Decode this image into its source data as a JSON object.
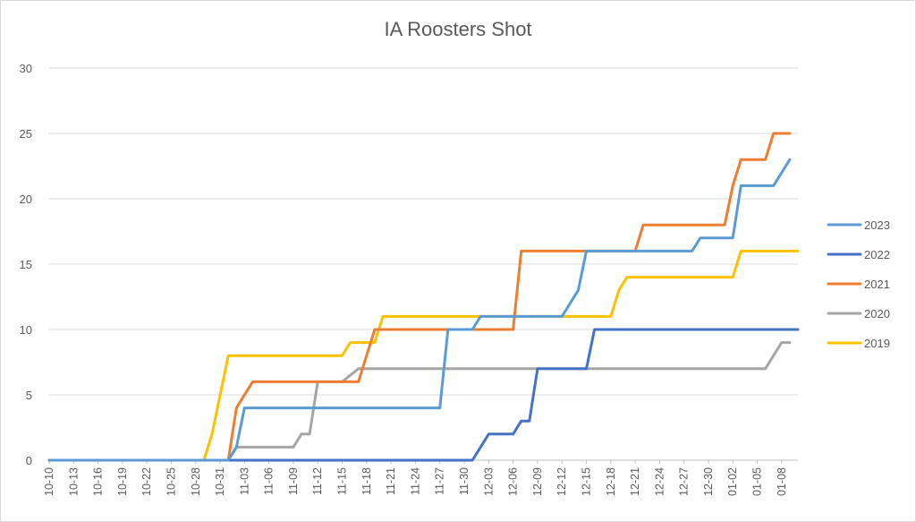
{
  "chart_data": {
    "type": "line",
    "title": "IA Roosters Shot",
    "xlabel": "",
    "ylabel": "",
    "ylim": [
      0,
      30
    ],
    "yticks": [
      0,
      5,
      10,
      15,
      20,
      25,
      30
    ],
    "grid": true,
    "legend_position": "right",
    "x_start": "10-10",
    "x_end": "01-10",
    "x_tick_labels": [
      "10-10",
      "10-13",
      "10-16",
      "10-19",
      "10-22",
      "10-25",
      "10-28",
      "10-31",
      "11-03",
      "11-06",
      "11-09",
      "11-12",
      "11-15",
      "11-18",
      "11-21",
      "11-24",
      "11-27",
      "11-30",
      "12-03",
      "12-06",
      "12-09",
      "12-12",
      "12-15",
      "12-18",
      "12-21",
      "12-24",
      "12-27",
      "12-30",
      "01-02",
      "01-05",
      "01-08"
    ],
    "series": [
      {
        "name": "2023",
        "color": "#5B9BD5",
        "points": [
          [
            "10-10",
            0
          ],
          [
            "11-01",
            0
          ],
          [
            "11-02",
            1
          ],
          [
            "11-03",
            4
          ],
          [
            "11-27",
            4
          ],
          [
            "11-28",
            10
          ],
          [
            "12-01",
            10
          ],
          [
            "12-02",
            11
          ],
          [
            "12-12",
            11
          ],
          [
            "12-14",
            13
          ],
          [
            "12-15",
            16
          ],
          [
            "12-28",
            16
          ],
          [
            "12-29",
            17
          ],
          [
            "01-02",
            17
          ],
          [
            "01-03",
            21
          ],
          [
            "01-07",
            21
          ],
          [
            "01-09",
            23
          ]
        ]
      },
      {
        "name": "2022",
        "color": "#4472C4",
        "points": [
          [
            "10-10",
            0
          ],
          [
            "12-01",
            0
          ],
          [
            "12-03",
            2
          ],
          [
            "12-06",
            2
          ],
          [
            "12-07",
            3
          ],
          [
            "12-08",
            3
          ],
          [
            "12-09",
            7
          ],
          [
            "12-15",
            7
          ],
          [
            "12-16",
            10
          ],
          [
            "01-10",
            10
          ]
        ]
      },
      {
        "name": "2021",
        "color": "#ED7D31",
        "points": [
          [
            "10-10",
            0
          ],
          [
            "11-01",
            0
          ],
          [
            "11-02",
            4
          ],
          [
            "11-04",
            6
          ],
          [
            "11-12",
            6
          ],
          [
            "11-17",
            6
          ],
          [
            "11-18",
            8
          ],
          [
            "11-19",
            10
          ],
          [
            "12-06",
            10
          ],
          [
            "12-07",
            16
          ],
          [
            "12-21",
            16
          ],
          [
            "12-22",
            18
          ],
          [
            "01-01",
            18
          ],
          [
            "01-02",
            21
          ],
          [
            "01-03",
            23
          ],
          [
            "01-06",
            23
          ],
          [
            "01-07",
            25
          ],
          [
            "01-09",
            25
          ]
        ]
      },
      {
        "name": "2020",
        "color": "#A5A5A5",
        "points": [
          [
            "10-10",
            0
          ],
          [
            "11-01",
            0
          ],
          [
            "11-02",
            1
          ],
          [
            "11-09",
            1
          ],
          [
            "11-10",
            2
          ],
          [
            "11-11",
            2
          ],
          [
            "11-12",
            6
          ],
          [
            "11-15",
            6
          ],
          [
            "11-17",
            7
          ],
          [
            "01-06",
            7
          ],
          [
            "01-08",
            9
          ],
          [
            "01-09",
            9
          ]
        ]
      },
      {
        "name": "2019",
        "color": "#FFC000",
        "points": [
          [
            "10-10",
            0
          ],
          [
            "10-29",
            0
          ],
          [
            "10-30",
            2
          ],
          [
            "10-31",
            5
          ],
          [
            "11-01",
            8
          ],
          [
            "11-15",
            8
          ],
          [
            "11-16",
            9
          ],
          [
            "11-19",
            9
          ],
          [
            "11-20",
            11
          ],
          [
            "12-18",
            11
          ],
          [
            "12-19",
            13
          ],
          [
            "12-20",
            14
          ],
          [
            "01-02",
            14
          ],
          [
            "01-03",
            16
          ],
          [
            "01-10",
            16
          ]
        ]
      }
    ]
  }
}
